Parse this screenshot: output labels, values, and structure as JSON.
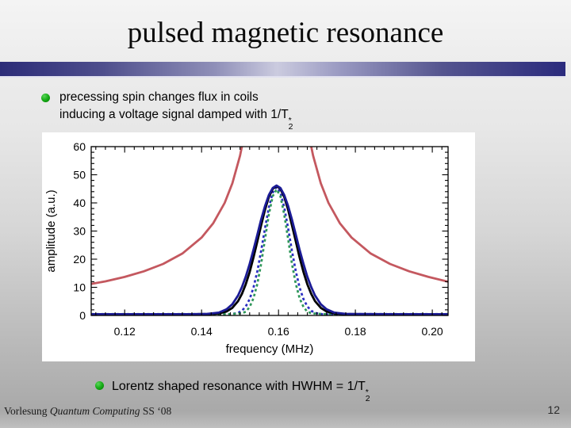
{
  "slide": {
    "title": "pulsed magnetic resonance",
    "page_number": "12",
    "footer": {
      "prefix": "Vorlesung ",
      "course": "Quantum Computing",
      "suffix": " SS ‘08"
    },
    "bullets": [
      {
        "line1": "precessing spin changes flux in coils",
        "line2_prefix": "inducing a voltage signal damped with ",
        "formula": {
          "base": "1/T",
          "sub": "2",
          "sup": "*"
        }
      },
      {
        "line1_prefix": "Lorentz shaped resonance with HWHM = ",
        "formula": {
          "base": "1/T",
          "sub": "2",
          "sup": "*"
        }
      }
    ],
    "colors": {
      "bar_dark": "#2c2c78",
      "bar_light": "#cbcbdf",
      "bullet_green": "#0a930a",
      "background_top": "#f4f4f4",
      "background_bottom": "#a9a9a9"
    }
  },
  "chart_data": {
    "type": "line",
    "title": "",
    "xlabel": "frequency (MHz)",
    "ylabel": "amplitude (a.u.)",
    "xlim": [
      0.1113,
      0.2041
    ],
    "ylim": [
      0,
      60
    ],
    "grid": false,
    "legend": "none",
    "x_major_ticks": [
      0.12,
      0.14,
      0.16,
      0.18,
      0.2
    ],
    "x_tick_labels": [
      "0.12",
      "0.14",
      "0.16",
      "0.18",
      "0.20"
    ],
    "x_minor_step": 0.0025,
    "y_major_ticks": [
      0,
      10,
      20,
      30,
      40,
      50,
      60
    ],
    "y_tick_labels": [
      "0",
      "10",
      "20",
      "30",
      "40",
      "50",
      "60"
    ],
    "y_minor_step": 2,
    "series": [
      {
        "name": "undamped-broad-resonance",
        "color": "#c4585f",
        "width": 2.8,
        "dash": "",
        "points": [
          [
            0.1113,
            11.2
          ],
          [
            0.115,
            12.1
          ],
          [
            0.12,
            13.7
          ],
          [
            0.125,
            15.7
          ],
          [
            0.13,
            18.3
          ],
          [
            0.135,
            22.0
          ],
          [
            0.14,
            27.7
          ],
          [
            0.143,
            32.7
          ],
          [
            0.146,
            40.0
          ],
          [
            0.148,
            47.0
          ],
          [
            0.15,
            56.8
          ],
          [
            0.151,
            63.5
          ],
          [
            0.152,
            72.0
          ],
          [
            0.167,
            72.0
          ],
          [
            0.168,
            63.5
          ],
          [
            0.169,
            56.8
          ],
          [
            0.171,
            47.0
          ],
          [
            0.173,
            40.0
          ],
          [
            0.176,
            32.7
          ],
          [
            0.179,
            27.7
          ],
          [
            0.184,
            22.0
          ],
          [
            0.189,
            18.3
          ],
          [
            0.194,
            15.7
          ],
          [
            0.199,
            13.7
          ],
          [
            0.2041,
            12.0
          ]
        ]
      },
      {
        "name": "narrow-resonance-dashed-blue",
        "color": "#2a2ec2",
        "width": 2.7,
        "dash": "3.2 3.2",
        "points": [
          [
            0.1113,
            0.35
          ],
          [
            0.14,
            0.35
          ],
          [
            0.1445,
            0.35
          ],
          [
            0.1475,
            0.45
          ],
          [
            0.1495,
            0.9
          ],
          [
            0.1505,
            1.7
          ],
          [
            0.1515,
            3.2
          ],
          [
            0.1525,
            5.8
          ],
          [
            0.1535,
            9.9
          ],
          [
            0.1545,
            15.7
          ],
          [
            0.1555,
            23.0
          ],
          [
            0.1565,
            31.0
          ],
          [
            0.1575,
            38.4
          ],
          [
            0.1585,
            43.7
          ],
          [
            0.1595,
            45.6
          ],
          [
            0.1605,
            43.7
          ],
          [
            0.1615,
            38.4
          ],
          [
            0.1625,
            31.0
          ],
          [
            0.1635,
            23.0
          ],
          [
            0.1645,
            15.7
          ],
          [
            0.1655,
            9.9
          ],
          [
            0.1665,
            5.8
          ],
          [
            0.1675,
            3.2
          ],
          [
            0.1685,
            1.7
          ],
          [
            0.1695,
            0.9
          ],
          [
            0.1715,
            0.45
          ],
          [
            0.175,
            0.35
          ],
          [
            0.2041,
            0.35
          ]
        ]
      },
      {
        "name": "narrow-resonance-dashed-green",
        "color": "#2e9659",
        "width": 2.7,
        "dash": "3.2 3.2",
        "points": [
          [
            0.1113,
            0.5
          ],
          [
            0.14,
            0.5
          ],
          [
            0.1475,
            0.5
          ],
          [
            0.1495,
            0.67
          ],
          [
            0.1505,
            0.85
          ],
          [
            0.1515,
            1.3
          ],
          [
            0.1525,
            3.0
          ],
          [
            0.1535,
            6.1
          ],
          [
            0.1545,
            11.2
          ],
          [
            0.1555,
            18.4
          ],
          [
            0.1565,
            27.2
          ],
          [
            0.1575,
            35.9
          ],
          [
            0.1585,
            42.4
          ],
          [
            0.1595,
            44.8
          ],
          [
            0.1605,
            42.4
          ],
          [
            0.1615,
            35.9
          ],
          [
            0.1625,
            27.2
          ],
          [
            0.1635,
            18.4
          ],
          [
            0.1645,
            11.2
          ],
          [
            0.1655,
            6.1
          ],
          [
            0.1665,
            3.0
          ],
          [
            0.1675,
            1.3
          ],
          [
            0.1685,
            0.85
          ],
          [
            0.1695,
            0.67
          ],
          [
            0.1715,
            0.5
          ],
          [
            0.2041,
            0.5
          ]
        ]
      },
      {
        "name": "lorentz-fit-black",
        "color": "#000000",
        "width": 2.8,
        "dash": "",
        "points": [
          [
            0.1113,
            0.4
          ],
          [
            0.125,
            0.4
          ],
          [
            0.1375,
            0.45
          ],
          [
            0.1415,
            0.5
          ],
          [
            0.1445,
            0.7
          ],
          [
            0.1465,
            1.4
          ],
          [
            0.148,
            2.7
          ],
          [
            0.1495,
            5.1
          ],
          [
            0.1505,
            7.7
          ],
          [
            0.1515,
            11.1
          ],
          [
            0.1525,
            15.4
          ],
          [
            0.1535,
            20.6
          ],
          [
            0.1545,
            26.3
          ],
          [
            0.1555,
            32.1
          ],
          [
            0.1565,
            37.6
          ],
          [
            0.1575,
            42.1
          ],
          [
            0.1585,
            45.0
          ],
          [
            0.1595,
            46.0
          ],
          [
            0.1605,
            45.0
          ],
          [
            0.1615,
            42.1
          ],
          [
            0.1625,
            37.6
          ],
          [
            0.1635,
            32.1
          ],
          [
            0.1645,
            26.3
          ],
          [
            0.1655,
            20.6
          ],
          [
            0.1665,
            15.4
          ],
          [
            0.1675,
            11.1
          ],
          [
            0.1685,
            7.7
          ],
          [
            0.1695,
            5.1
          ],
          [
            0.171,
            2.7
          ],
          [
            0.1725,
            1.4
          ],
          [
            0.1745,
            0.7
          ],
          [
            0.1775,
            0.5
          ],
          [
            0.1815,
            0.45
          ],
          [
            0.19,
            0.4
          ],
          [
            0.2041,
            0.4
          ]
        ]
      },
      {
        "name": "damped-signal-blue",
        "color": "#1b1b96",
        "width": 2.8,
        "dash": "",
        "points": [
          [
            0.1113,
            0.45
          ],
          [
            0.13,
            0.45
          ],
          [
            0.1375,
            0.45
          ],
          [
            0.1415,
            0.55
          ],
          [
            0.1445,
            1.0
          ],
          [
            0.1465,
            2.2
          ],
          [
            0.148,
            4.0
          ],
          [
            0.1495,
            7.1
          ],
          [
            0.1505,
            10.1
          ],
          [
            0.1515,
            13.8
          ],
          [
            0.1525,
            18.3
          ],
          [
            0.1535,
            23.3
          ],
          [
            0.1545,
            28.7
          ],
          [
            0.1555,
            34.1
          ],
          [
            0.1565,
            38.9
          ],
          [
            0.1575,
            42.8
          ],
          [
            0.1585,
            45.3
          ],
          [
            0.1595,
            46.2
          ],
          [
            0.1605,
            45.3
          ],
          [
            0.1615,
            42.8
          ],
          [
            0.1625,
            38.9
          ],
          [
            0.1635,
            34.1
          ],
          [
            0.1645,
            28.7
          ],
          [
            0.1655,
            23.3
          ],
          [
            0.1665,
            18.3
          ],
          [
            0.1675,
            13.8
          ],
          [
            0.1685,
            10.1
          ],
          [
            0.1695,
            7.1
          ],
          [
            0.171,
            4.0
          ],
          [
            0.1725,
            2.2
          ],
          [
            0.1745,
            1.0
          ],
          [
            0.1775,
            0.55
          ],
          [
            0.19,
            0.45
          ],
          [
            0.2041,
            0.45
          ]
        ]
      }
    ]
  }
}
